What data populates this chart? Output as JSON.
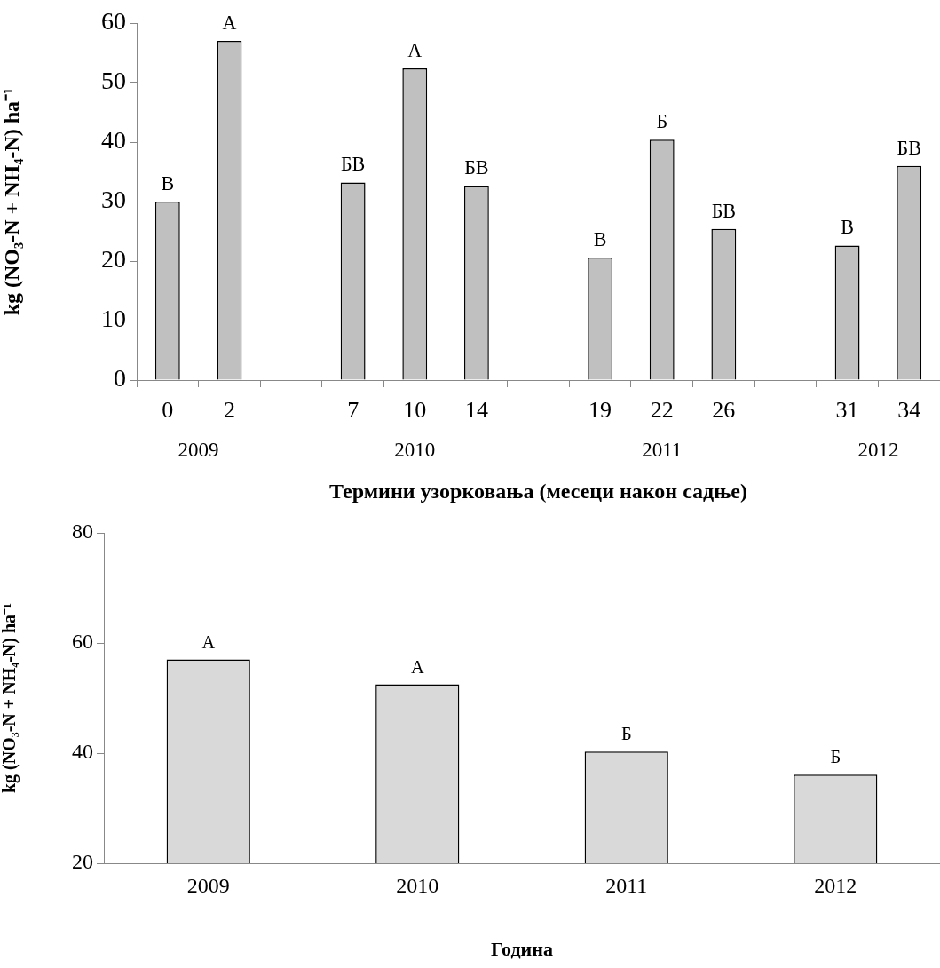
{
  "chart_data": [
    {
      "type": "bar",
      "xlabel": "Термини узорковања (месеци након садње)",
      "ylabel": "kg (NO₃-N + NH₄-N) ha⁻¹",
      "categories": [
        "0",
        "2",
        null,
        "7",
        "10",
        "14",
        null,
        "19",
        "22",
        "26",
        null,
        "31",
        "34"
      ],
      "values": [
        30.0,
        57.0,
        null,
        33.2,
        52.4,
        32.6,
        null,
        20.6,
        40.4,
        25.4,
        null,
        22.6,
        36.0
      ],
      "value_labels": [
        "В",
        "А",
        null,
        "БВ",
        "А",
        "БВ",
        null,
        "В",
        "Б",
        "БВ",
        null,
        "В",
        "БВ"
      ],
      "color": "#c0c0c0",
      "ylim": [
        0,
        60
      ],
      "yticks": [
        0,
        10,
        20,
        30,
        40,
        50,
        60
      ],
      "grid": false,
      "annotations": [
        "2009",
        "2010",
        "2011",
        "2012"
      ]
    },
    {
      "type": "bar",
      "xlabel": "Година",
      "ylabel": "kg (NO₃-N + NH₄-N) ha⁻¹",
      "categories": [
        "2009",
        "2010",
        "2011",
        "2012"
      ],
      "values": [
        57.0,
        52.5,
        40.3,
        36.1
      ],
      "value_labels": [
        "А",
        "А",
        "Б",
        "Б"
      ],
      "color": "#d9d9d9",
      "ylim": [
        20,
        80
      ],
      "yticks": [
        20,
        40,
        60,
        80
      ],
      "grid": false
    }
  ]
}
